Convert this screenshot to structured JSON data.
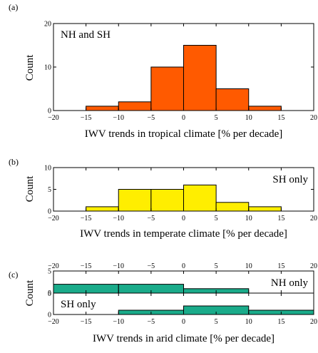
{
  "chart_data": [
    {
      "panel": "(a)",
      "type": "bar",
      "annotation": "NH and SH",
      "xlabel": "IWV trends in tropical climate [% per decade]",
      "ylabel": "Count",
      "xlim": [
        -20,
        20
      ],
      "ylim": [
        0,
        20
      ],
      "xticks": [
        "−20",
        "−15",
        "−10",
        "−5",
        "0",
        "5",
        "10",
        "15",
        "20"
      ],
      "yticks": [
        "0",
        "10",
        "20"
      ],
      "color": "#ff5a00",
      "bins": [
        {
          "from": -15,
          "to": -10,
          "count": 1
        },
        {
          "from": -10,
          "to": -5,
          "count": 2
        },
        {
          "from": -5,
          "to": 0,
          "count": 10
        },
        {
          "from": 0,
          "to": 5,
          "count": 15
        },
        {
          "from": 5,
          "to": 10,
          "count": 5
        },
        {
          "from": 10,
          "to": 15,
          "count": 1
        }
      ]
    },
    {
      "panel": "(b)",
      "type": "bar",
      "annotation": "SH only",
      "xlabel": "IWV trends in temperate climate [% per decade]",
      "ylabel": "Count",
      "xlim": [
        -20,
        20
      ],
      "ylim": [
        0,
        10
      ],
      "xticks": [
        "−20",
        "−15",
        "−10",
        "−5",
        "0",
        "5",
        "10",
        "15",
        "20"
      ],
      "yticks": [
        "0",
        "5",
        "10"
      ],
      "color": "#ffee00",
      "bins": [
        {
          "from": -15,
          "to": -10,
          "count": 1
        },
        {
          "from": -10,
          "to": -5,
          "count": 5
        },
        {
          "from": -5,
          "to": 0,
          "count": 5
        },
        {
          "from": 0,
          "to": 5,
          "count": 6
        },
        {
          "from": 5,
          "to": 10,
          "count": 2
        },
        {
          "from": 10,
          "to": 15,
          "count": 1
        }
      ]
    },
    {
      "panel": "(c)",
      "type": "bar",
      "annotation": "NH only",
      "xlabel": "",
      "ylabel": "",
      "xlim": [
        -20,
        20
      ],
      "ylim": [
        0,
        5
      ],
      "xticks": [
        "−20",
        "−15",
        "−10",
        "−5",
        "0",
        "5",
        "10",
        "15",
        "20"
      ],
      "yticks": [
        "0",
        "5"
      ],
      "color": "#1aab8a",
      "bins": [
        {
          "from": -20,
          "to": -10,
          "count": 2
        },
        {
          "from": -10,
          "to": 0,
          "count": 2
        },
        {
          "from": 0,
          "to": 10,
          "count": 1
        }
      ]
    },
    {
      "panel": "",
      "type": "bar",
      "annotation": "SH only",
      "xlabel": "IWV trends in arid climate [% per decade]",
      "ylabel": "Count",
      "xlim": [
        -20,
        20
      ],
      "ylim": [
        0,
        5
      ],
      "xticks": [
        "−20",
        "−15",
        "−10",
        "−5",
        "0",
        "5",
        "10",
        "15",
        "20"
      ],
      "yticks": [
        "0",
        "5"
      ],
      "color": "#1aab8a",
      "bins": [
        {
          "from": -10,
          "to": 0,
          "count": 1
        },
        {
          "from": 0,
          "to": 10,
          "count": 2
        },
        {
          "from": 10,
          "to": 20,
          "count": 1
        }
      ]
    }
  ]
}
